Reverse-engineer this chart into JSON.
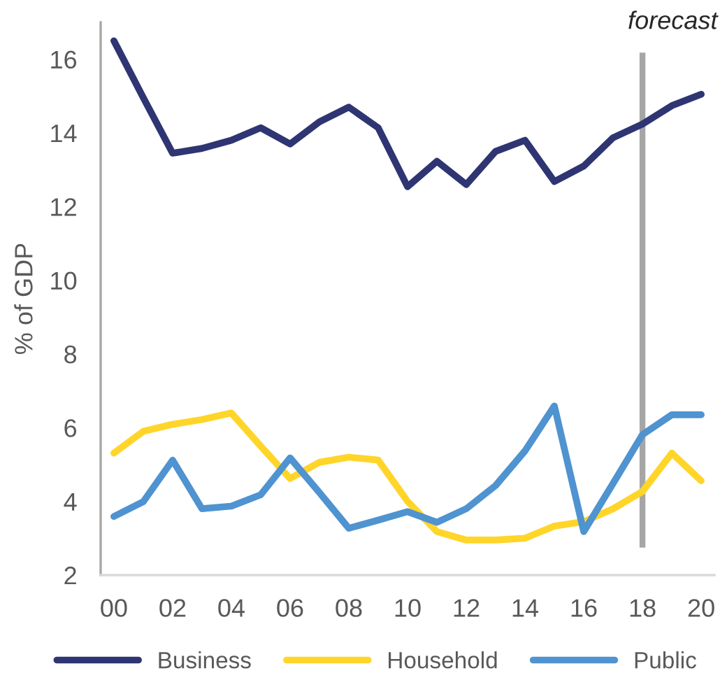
{
  "chart_data": {
    "type": "line",
    "ylabel": "% of GDP",
    "x": [
      0,
      1,
      2,
      3,
      4,
      5,
      6,
      7,
      8,
      9,
      10,
      11,
      12,
      13,
      14,
      15,
      16,
      17,
      18,
      19,
      20
    ],
    "xlim": [
      -0.45,
      20.45
    ],
    "xticks": [
      {
        "value": 0,
        "label": "00"
      },
      {
        "value": 2,
        "label": "02"
      },
      {
        "value": 4,
        "label": "04"
      },
      {
        "value": 6,
        "label": "06"
      },
      {
        "value": 8,
        "label": "08"
      },
      {
        "value": 10,
        "label": "10"
      },
      {
        "value": 12,
        "label": "12"
      },
      {
        "value": 14,
        "label": "14"
      },
      {
        "value": 16,
        "label": "16"
      },
      {
        "value": 18,
        "label": "18"
      },
      {
        "value": 20,
        "label": "20"
      }
    ],
    "ylim": [
      2,
      17
    ],
    "yticks": [
      2,
      4,
      6,
      8,
      10,
      12,
      14,
      16
    ],
    "grid": false,
    "legend": "bottom",
    "marker": "none",
    "line_style": "solid",
    "ref_lines": [
      {
        "axis": "x",
        "value": 18,
        "label": "forecast",
        "color": "#a6a6a6"
      }
    ],
    "series": [
      {
        "name": "Business",
        "color": "#2e3572",
        "values": [
          16.5,
          14.96,
          13.45,
          13.58,
          13.8,
          14.14,
          13.7,
          14.3,
          14.7,
          14.14,
          12.54,
          13.23,
          12.6,
          13.5,
          13.8,
          12.68,
          13.1,
          13.87,
          14.24,
          14.74,
          15.05
        ]
      },
      {
        "name": "Household",
        "color": "#ffd52a",
        "values": [
          5.31,
          5.9,
          6.09,
          6.22,
          6.4,
          5.5,
          4.62,
          5.06,
          5.2,
          5.12,
          4.0,
          3.18,
          2.95,
          2.95,
          3.0,
          3.33,
          3.45,
          3.8,
          4.27,
          5.31,
          4.56
        ]
      },
      {
        "name": "Public",
        "color": "#4f93d0",
        "values": [
          3.59,
          3.99,
          5.12,
          3.8,
          3.87,
          4.18,
          5.18,
          4.24,
          3.27,
          3.49,
          3.72,
          3.43,
          3.8,
          4.43,
          5.37,
          6.59,
          3.18,
          4.49,
          5.81,
          6.35,
          6.35
        ]
      }
    ]
  }
}
